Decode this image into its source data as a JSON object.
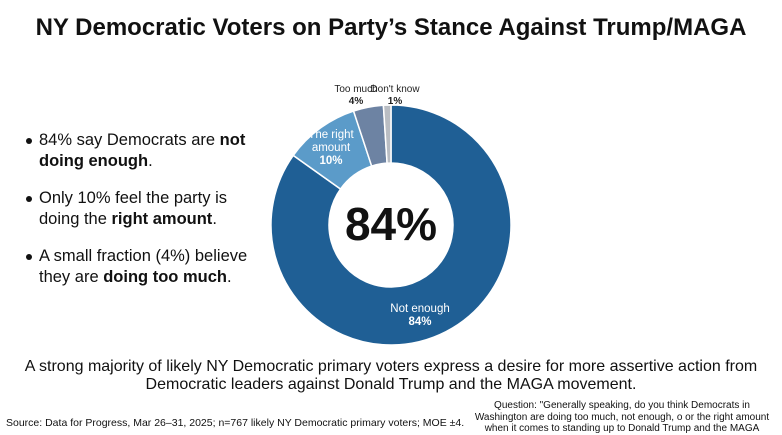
{
  "title": "NY Democratic Voters on Party’s Stance Against Trump/MAGA",
  "bullets": [
    {
      "pre": "84% say Democrats are ",
      "bold": "not doing enough",
      "post": "."
    },
    {
      "pre": "Only 10% feel the party is doing the ",
      "bold": "right amount",
      "post": "."
    },
    {
      "pre": "A small fraction (4%) believe they are ",
      "bold": "doing too much",
      "post": "."
    }
  ],
  "chart_data": {
    "type": "pie",
    "donut": true,
    "center_label": "84%",
    "slices": [
      {
        "label": "Not enough",
        "value": 84,
        "color": "#1f5f95"
      },
      {
        "label": "The right amount",
        "value": 10,
        "color": "#5b9bc9"
      },
      {
        "label": "Too much",
        "value": 4,
        "color": "#6d83a3"
      },
      {
        "label": "Don't know",
        "value": 1,
        "color": "#b9bdc3"
      }
    ]
  },
  "summary": "A strong majority of likely NY Democratic primary voters express a desire for more assertive action from Democratic leaders against Donald Trump and the MAGA movement.",
  "source": "Source: Data for Progress, Mar 26–31, 2025; n=767 likely NY Democratic primary voters; MOE ±4.",
  "question": "Question: \"Generally speaking, do you think Democrats in Washington are doing too much, not enough, o or the right amount when it comes to standing up to Donald Trump and the MAGA"
}
